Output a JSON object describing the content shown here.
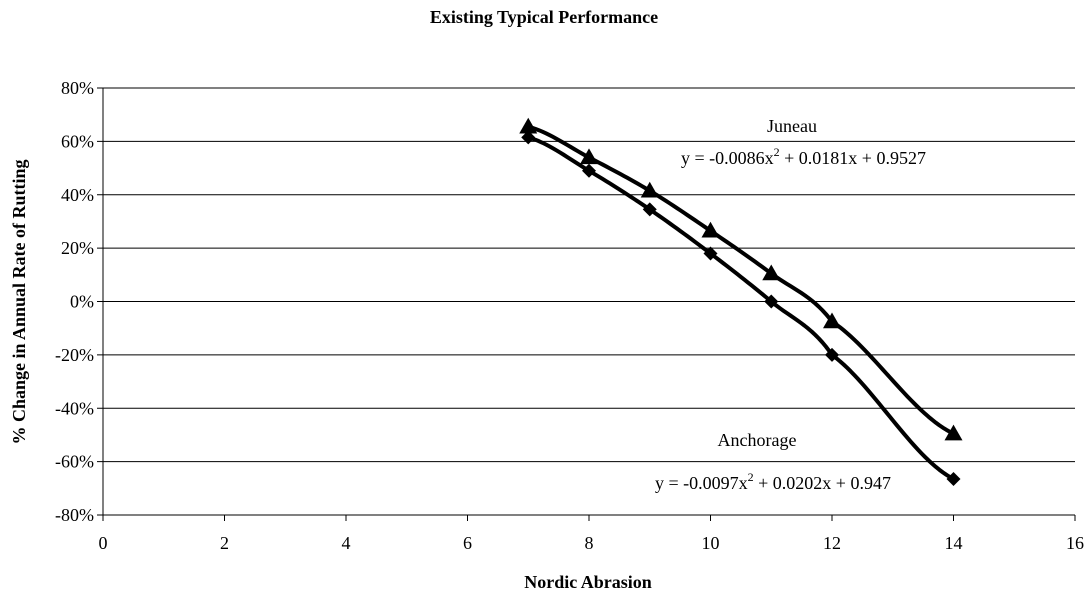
{
  "chart_data": {
    "type": "line",
    "title": "Existing Typical Performance",
    "xlabel": "Nordic Abrasion",
    "ylabel": "% Change in Annual Rate of Rutting",
    "xlim": [
      0,
      16
    ],
    "ylim": [
      -80,
      80
    ],
    "x_ticks": [
      "0",
      "2",
      "4",
      "6",
      "8",
      "10",
      "12",
      "14",
      "16"
    ],
    "y_ticks": [
      "80%",
      "60%",
      "40%",
      "20%",
      "0%",
      "-20%",
      "-40%",
      "-60%",
      "-80%"
    ],
    "grid": "horizontal",
    "series": [
      {
        "name": "Juneau",
        "marker": "triangle",
        "color": "#000000",
        "x": [
          7,
          8,
          9,
          10,
          11,
          12,
          14
        ],
        "y": [
          65.5,
          54,
          41.5,
          26.5,
          10.5,
          -7.5,
          -49.5
        ],
        "trendline": {
          "equation_prefix": "y = -0.0086x",
          "equation_power": "2",
          "equation_suffix": " + 0.0181x + 0.9527",
          "coefficients": [
            -0.0086,
            0.0181,
            0.9527
          ]
        }
      },
      {
        "name": "Anchorage",
        "marker": "diamond",
        "color": "#000000",
        "x": [
          7,
          8,
          9,
          10,
          11,
          12,
          14
        ],
        "y": [
          61.5,
          49,
          34.5,
          18,
          0,
          -20,
          -66.5
        ],
        "trendline": {
          "equation_prefix": "y = -0.0097x",
          "equation_power": "2",
          "equation_suffix": " + 0.0202x + 0.947",
          "coefficients": [
            -0.0097,
            0.0202,
            0.947
          ]
        }
      }
    ]
  }
}
